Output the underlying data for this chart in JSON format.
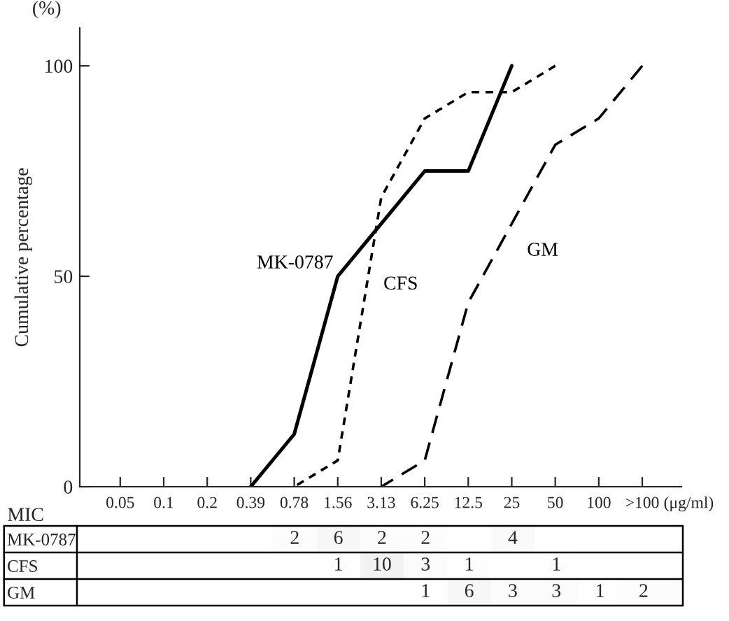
{
  "chart_data": [
    {
      "type": "line",
      "categories": [
        "0.05",
        "0.1",
        "0.2",
        "0.39",
        "0.78",
        "1.56",
        "3.13",
        "6.25",
        "12.5",
        "25",
        "50",
        "100",
        ">100"
      ],
      "xlabel": "MIC",
      "ylabel": "Cumulative percentage",
      "ylim": [
        0,
        109
      ],
      "yticks": [
        0,
        50,
        100
      ],
      "annotations": [
        "(%)",
        "(μg/ml)"
      ],
      "grid": false,
      "legend": false,
      "series": [
        {
          "name": "MK-0787",
          "color": "#000000",
          "line_style": "solid",
          "values": [
            null,
            null,
            null,
            0,
            12.5,
            50,
            62.5,
            75,
            75,
            100,
            null,
            null,
            null
          ]
        },
        {
          "name": "CFS",
          "color": "#000000",
          "line_style": "dotted",
          "values": [
            null,
            null,
            null,
            null,
            0,
            6.25,
            68.75,
            87.5,
            93.75,
            93.75,
            100,
            null,
            null
          ]
        },
        {
          "name": "GM",
          "color": "#000000",
          "line_style": "dashed",
          "values": [
            null,
            null,
            null,
            null,
            null,
            null,
            0,
            6.25,
            43.75,
            62.5,
            81.25,
            87.5,
            100
          ]
        }
      ]
    },
    {
      "type": "heatmap",
      "categories": [
        null,
        null,
        null,
        null,
        null,
        null,
        null,
        null,
        null,
        null,
        null,
        null,
        null
      ],
      "y_categories": [
        "MK-0787",
        "CFS",
        "GM"
      ],
      "cells": [
        [
          null,
          null,
          null,
          null,
          2,
          6,
          2,
          2,
          null,
          4,
          null,
          null,
          null
        ],
        [
          null,
          null,
          null,
          null,
          null,
          1,
          10,
          3,
          1,
          null,
          1,
          null,
          null
        ],
        [
          null,
          null,
          null,
          null,
          null,
          null,
          null,
          1,
          6,
          3,
          3,
          1,
          2
        ]
      ],
      "cell_labels": [
        [
          null,
          null,
          null,
          null,
          "2",
          "6",
          "2",
          "2",
          null,
          "4",
          null,
          null,
          null
        ],
        [
          null,
          null,
          null,
          null,
          null,
          "1",
          "10",
          "3",
          "1",
          null,
          "1",
          null,
          null
        ],
        [
          null,
          null,
          null,
          null,
          null,
          null,
          null,
          "1",
          "6",
          "3",
          "3",
          "1",
          "2"
        ]
      ]
    }
  ]
}
